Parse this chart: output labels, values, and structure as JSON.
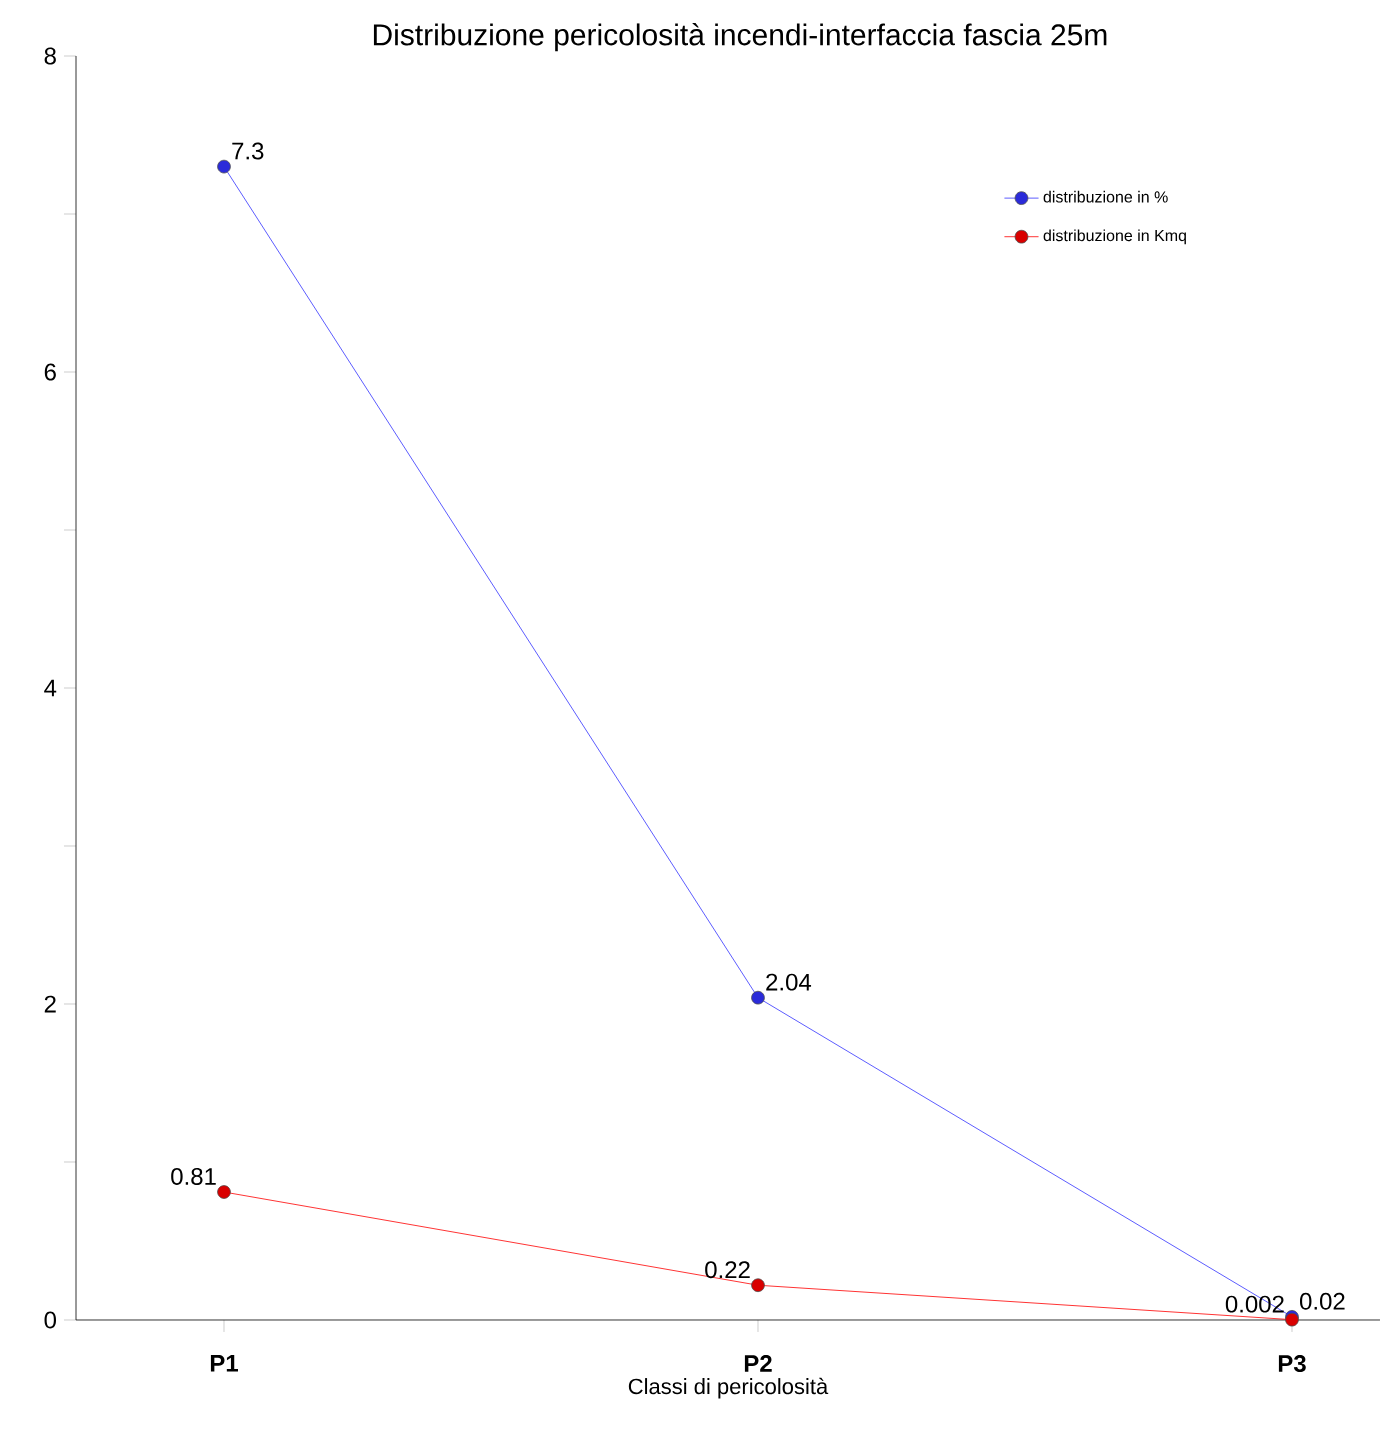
{
  "chart_data": {
    "type": "line",
    "title": "Distribuzione pericolosità incendi-interfaccia fascia 25m",
    "xlabel": "Classi di pericolosità",
    "categories": [
      "**P1**",
      "**P2**",
      "**P3**"
    ],
    "series": [
      {
        "name": "distribuzione in %",
        "color": "#3333ff",
        "values": [
          7.3,
          2.04,
          0.02
        ]
      },
      {
        "name": "distribuzione in Kmq",
        "color": "#ff0000",
        "values": [
          0.81,
          0.22,
          0.002
        ]
      }
    ],
    "ylim": [
      0,
      8
    ],
    "yticks": [
      0,
      {
        "value": 1,
        "label": null
      },
      2,
      {
        "value": 3,
        "label": null
      },
      4,
      {
        "value": 5,
        "label": null
      },
      6,
      {
        "value": 7,
        "label": null
      },
      8
    ],
    "data_labels": true,
    "legend": "top right",
    "marker": "circle",
    "line_style": "solid",
    "grid": false
  }
}
